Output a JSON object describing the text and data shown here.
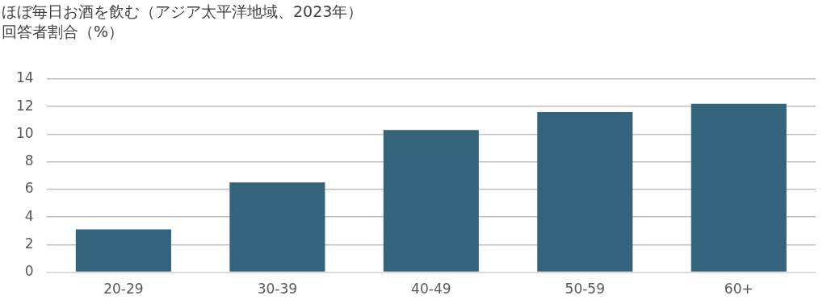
{
  "chart_data": {
    "type": "bar",
    "title": "ほぼ毎日お酒を飲む（アジア太平洋地域、2023年）",
    "subtitle": "回答者割合（%）",
    "categories": [
      "20-29",
      "30-39",
      "40-49",
      "50-59",
      "60+"
    ],
    "values": [
      3.1,
      6.5,
      10.3,
      11.6,
      12.2
    ],
    "color": "#33647c",
    "ylim": [
      0,
      14
    ],
    "yticks": [
      0,
      2,
      4,
      6,
      8,
      10,
      12,
      14
    ],
    "grid": "y"
  }
}
